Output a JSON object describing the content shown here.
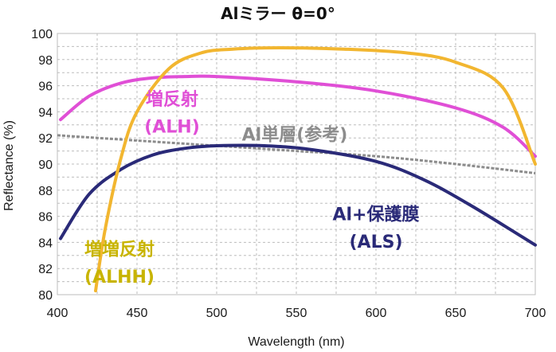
{
  "chart_data": {
    "type": "line",
    "title": "Alミラー θ=0°",
    "xlabel": "Wavelength (nm)",
    "ylabel": "Reflectance (%)",
    "xlim": [
      400,
      700
    ],
    "ylim": [
      80,
      100
    ],
    "xticks": [
      400,
      450,
      500,
      550,
      600,
      650,
      700
    ],
    "yticks": [
      80,
      82,
      84,
      86,
      88,
      90,
      92,
      94,
      96,
      98,
      100
    ],
    "grid": true,
    "series": [
      {
        "name": "Al単層(参考)",
        "color": "#8c8c8c",
        "dashed": true,
        "x": [
          400,
          450,
          500,
          550,
          600,
          650,
          700
        ],
        "y": [
          92.2,
          91.8,
          91.4,
          91.0,
          90.6,
          90.0,
          89.3
        ]
      },
      {
        "name": "増反射 (ALH)",
        "color": "#e04fd6",
        "dashed": false,
        "x": [
          402,
          420,
          440,
          460,
          480,
          500,
          550,
          600,
          650,
          680,
          700
        ],
        "y": [
          93.4,
          95.2,
          96.2,
          96.6,
          96.7,
          96.7,
          96.3,
          95.6,
          94.3,
          92.8,
          90.6
        ]
      },
      {
        "name": "Al+保護膜 (ALS)",
        "color": "#2a2a78",
        "dashed": false,
        "x": [
          402,
          420,
          440,
          460,
          480,
          500,
          530,
          560,
          600,
          630,
          660,
          700
        ],
        "y": [
          84.3,
          87.7,
          89.6,
          90.7,
          91.2,
          91.4,
          91.4,
          91.1,
          90.2,
          88.8,
          86.8,
          83.8
        ]
      },
      {
        "name": "増増反射 (ALHH)",
        "color": "#f2b630",
        "dashed": false,
        "x": [
          424,
          430,
          440,
          450,
          470,
          490,
          510,
          540,
          580,
          620,
          650,
          680,
          700
        ],
        "y": [
          80.3,
          85.0,
          90.5,
          94.0,
          97.3,
          98.5,
          98.8,
          98.9,
          98.8,
          98.5,
          97.8,
          95.8,
          90.0
        ]
      }
    ],
    "annotations": [
      {
        "lines": [
          "増反射",
          "(ALH)"
        ],
        "color": "#e04fd6",
        "x": 472,
        "y": [
          95.0,
          92.9
        ]
      },
      {
        "lines": [
          "Al単層(参考)"
        ],
        "color": "#8c8c8c",
        "x": 549,
        "y": [
          92.3
        ]
      },
      {
        "lines": [
          "Al+保護膜",
          "(ALS)"
        ],
        "color": "#2a2a78",
        "x": 600,
        "y": [
          86.2,
          84.1
        ]
      },
      {
        "lines": [
          "増増反射",
          "(ALHH)"
        ],
        "color": "#c8b400",
        "x": 439,
        "y": [
          83.5,
          81.4
        ]
      }
    ]
  }
}
